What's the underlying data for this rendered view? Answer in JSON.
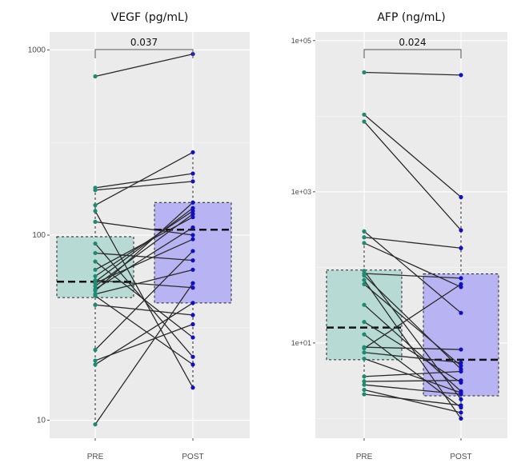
{
  "chart_data": [
    {
      "type": "boxplot-paired",
      "title": "VEGF (pg/mL)",
      "y_scale": "log",
      "ylim": [
        8,
        1250
      ],
      "y_ticks": [
        10,
        100,
        1000
      ],
      "y_tick_labels": [
        "10",
        "100",
        "1000"
      ],
      "categories": [
        "PRE",
        "POST"
      ],
      "annotation": "0.037",
      "colors": {
        "pre_box": "#b7dbd4",
        "post_box": "#b8b3f2",
        "pre_point": "#1f8a72",
        "post_point": "#1010c0"
      },
      "boxes": [
        {
          "q1": 46,
          "median": 56,
          "q3": 98,
          "whisker_low": 9.5,
          "whisker_high": 180
        },
        {
          "q1": 43,
          "median": 107,
          "q3": 150,
          "whisker_low": 15,
          "whisker_high": 280
        }
      ],
      "pairs": [
        [
          9.5,
          55
        ],
        [
          20,
          43
        ],
        [
          21,
          33
        ],
        [
          24,
          82
        ],
        [
          42,
          37
        ],
        [
          47,
          20
        ],
        [
          48,
          65
        ],
        [
          50,
          150
        ],
        [
          51,
          110
        ],
        [
          53,
          130
        ],
        [
          55,
          95
        ],
        [
          56,
          140
        ],
        [
          57,
          52
        ],
        [
          60,
          135
        ],
        [
          65,
          125
        ],
        [
          72,
          28
        ],
        [
          80,
          73
        ],
        [
          90,
          22
        ],
        [
          118,
          100
        ],
        [
          135,
          15
        ],
        [
          145,
          280
        ],
        [
          175,
          195
        ],
        [
          180,
          215
        ],
        [
          720,
          950
        ]
      ]
    },
    {
      "type": "boxplot-paired",
      "title": "AFP (ng/mL)",
      "y_scale": "log",
      "ylim": [
        0.55,
        130000
      ],
      "y_ticks": [
        10,
        1000,
        100000
      ],
      "y_tick_labels": [
        "1e+01",
        "1e+03",
        "1e+05"
      ],
      "categories": [
        "PRE",
        "POST"
      ],
      "annotation": "0.024",
      "colors": {
        "pre_box": "#b7dbd4",
        "post_box": "#b8b3f2",
        "pre_point": "#1f8a72",
        "post_point": "#1010c0"
      },
      "boxes": [
        {
          "q1": 6,
          "median": 16,
          "q3": 92,
          "whisker_low": 2.1,
          "whisker_high": 300
        },
        {
          "q1": 2,
          "median": 6,
          "q3": 82,
          "whisker_low": 1,
          "whisker_high": 850
        }
      ],
      "pairs": [
        [
          2.1,
          1.5
        ],
        [
          2.4,
          1.2
        ],
        [
          2.8,
          2.1
        ],
        [
          3.1,
          3.2
        ],
        [
          3.6,
          4.2
        ],
        [
          6.2,
          2.2
        ],
        [
          7.5,
          5.5
        ],
        [
          8.5,
          60
        ],
        [
          8.8,
          8.2
        ],
        [
          13,
          1.4
        ],
        [
          19,
          3
        ],
        [
          32,
          2.3
        ],
        [
          60,
          5
        ],
        [
          68,
          1
        ],
        [
          78,
          4.5
        ],
        [
          83,
          72
        ],
        [
          90,
          1.8
        ],
        [
          210,
          55
        ],
        [
          250,
          180
        ],
        [
          300,
          25
        ],
        [
          8500,
          310
        ],
        [
          10500,
          850
        ],
        [
          38000,
          35000
        ]
      ]
    }
  ]
}
